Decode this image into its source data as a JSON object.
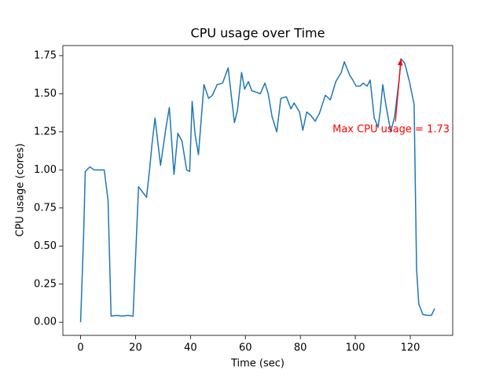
{
  "chart_data": {
    "type": "line",
    "title": "CPU usage over Time",
    "x_label": "Time (sec)",
    "y_label": "CPU usage (cores)",
    "xlim": [
      -6.45,
      135.45
    ],
    "ylim": [
      -0.0865,
      1.8165
    ],
    "xticks": [
      0,
      20,
      40,
      60,
      80,
      100,
      120
    ],
    "yticks": [
      {
        "value": 0,
        "label": "0.00"
      },
      {
        "value": 0.25,
        "label": "0.25"
      },
      {
        "value": 0.5,
        "label": "0.50"
      },
      {
        "value": 0.75,
        "label": "0.75"
      },
      {
        "value": 1,
        "label": "1.00"
      },
      {
        "value": 1.25,
        "label": "1.25"
      },
      {
        "value": 1.5,
        "label": "1.50"
      },
      {
        "value": 1.75,
        "label": "1.75"
      }
    ],
    "grid": false,
    "series": [
      {
        "name": "CPU usage",
        "color": "#1f77b4",
        "x": [
          0,
          1.1,
          1.7,
          3.4,
          4.9,
          8.6,
          10,
          11.1,
          13.1,
          15.1,
          17.1,
          19.1,
          21.1,
          24,
          25.1,
          26,
          27.1,
          29.1,
          31.1,
          32.3,
          34,
          35.4,
          36.9,
          38.6,
          39.7,
          40.6,
          41.7,
          42.9,
          44.9,
          46.6,
          48,
          49.7,
          51.7,
          53.7,
          56,
          57.1,
          58.6,
          59.7,
          61.1,
          62.3,
          64,
          65.4,
          67.1,
          68.3,
          69.7,
          71.4,
          72.9,
          74.9,
          76.6,
          77.7,
          79.7,
          80.9,
          82.3,
          83.7,
          85.4,
          86.9,
          89.1,
          90.9,
          92.9,
          94.9,
          96,
          98,
          99.1,
          100.3,
          101.7,
          102.9,
          104.3,
          105.4,
          106.9,
          108.3,
          109.1,
          110,
          111.1,
          112.9,
          114.3,
          116,
          116.6,
          118,
          119.7,
          121.4,
          122.3,
          123.1,
          124.6,
          126.3,
          127.7,
          128.9
        ],
        "values": [
          0,
          0.57,
          0.99,
          1.02,
          1.0,
          1.0,
          0.8,
          0.04,
          0.045,
          0.04,
          0.045,
          0.04,
          0.89,
          0.82,
          1.0,
          1.17,
          1.34,
          1.03,
          1.28,
          1.41,
          0.97,
          1.24,
          1.19,
          1.0,
          0.99,
          1.45,
          1.23,
          1.1,
          1.56,
          1.47,
          1.49,
          1.56,
          1.57,
          1.67,
          1.31,
          1.39,
          1.64,
          1.53,
          1.58,
          1.52,
          1.51,
          1.5,
          1.57,
          1.5,
          1.35,
          1.25,
          1.47,
          1.48,
          1.4,
          1.44,
          1.38,
          1.26,
          1.38,
          1.36,
          1.32,
          1.37,
          1.49,
          1.46,
          1.58,
          1.64,
          1.71,
          1.62,
          1.59,
          1.55,
          1.55,
          1.57,
          1.55,
          1.59,
          1.34,
          1.28,
          1.39,
          1.56,
          1.43,
          1.25,
          1.35,
          1.6,
          1.73,
          1.7,
          1.58,
          1.43,
          0.35,
          0.12,
          0.05,
          0.045,
          0.045,
          0.09
        ]
      }
    ],
    "annotation": {
      "text": "Max CPU usage = 1.73",
      "x": 116.6,
      "y": 1.73,
      "color": "#ff0000"
    }
  }
}
